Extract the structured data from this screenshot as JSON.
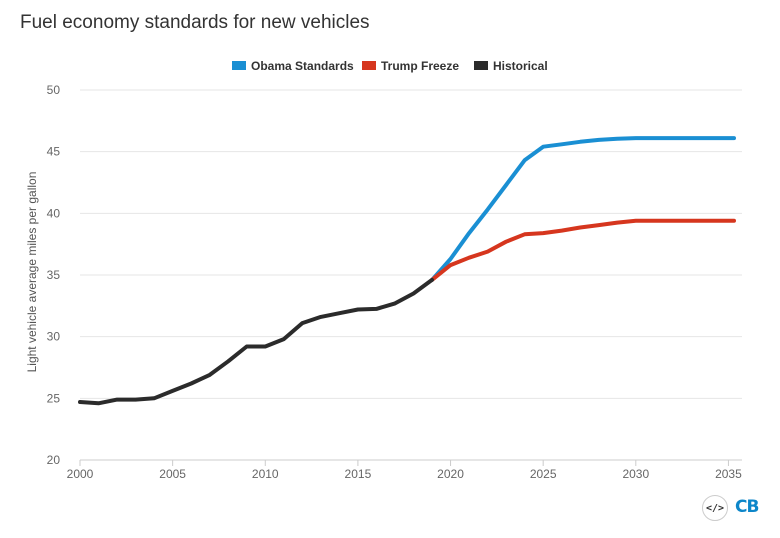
{
  "title": "Fuel economy standards for new vehicles",
  "embed_icon_text": "</>",
  "logo_text": "CB",
  "chart_data": {
    "type": "line",
    "title": "Fuel economy standards for new vehicles",
    "xlabel": "",
    "ylabel": "Light vehicle average miles per gallon",
    "xlim": [
      2000,
      2035.3
    ],
    "ylim": [
      20,
      50
    ],
    "x_ticks": [
      2000,
      2005,
      2010,
      2015,
      2020,
      2025,
      2030,
      2035
    ],
    "y_ticks": [
      20,
      25,
      30,
      35,
      40,
      45,
      50
    ],
    "grid": "horizontal",
    "legend_position": "top-center",
    "series": [
      {
        "name": "Obama Standards",
        "color": "#1a8fd3",
        "x": [
          2019,
          2020,
          2021,
          2022,
          2023,
          2024,
          2025,
          2026,
          2027,
          2028,
          2029,
          2030,
          2031,
          2032,
          2033,
          2034,
          2035.3
        ],
        "y": [
          34.6,
          36.3,
          38.4,
          40.3,
          42.3,
          44.3,
          45.4,
          45.6,
          45.8,
          45.95,
          46.05,
          46.1,
          46.1,
          46.1,
          46.1,
          46.1,
          46.1
        ]
      },
      {
        "name": "Trump Freeze",
        "color": "#d6361e",
        "x": [
          2019,
          2020,
          2021,
          2022,
          2023,
          2024,
          2025,
          2026,
          2027,
          2028,
          2029,
          2030,
          2031,
          2032,
          2033,
          2034,
          2035.3
        ],
        "y": [
          34.6,
          35.8,
          36.4,
          36.9,
          37.7,
          38.3,
          38.4,
          38.6,
          38.85,
          39.05,
          39.25,
          39.4,
          39.4,
          39.4,
          39.4,
          39.4,
          39.4
        ]
      },
      {
        "name": "Historical",
        "color": "#2b2b2b",
        "x": [
          2000,
          2001,
          2002,
          2003,
          2004,
          2005,
          2006,
          2007,
          2008,
          2009,
          2010,
          2011,
          2012,
          2013,
          2014,
          2015,
          2016,
          2017,
          2018,
          2019
        ],
        "y": [
          24.7,
          24.6,
          24.9,
          24.9,
          25.0,
          25.6,
          26.2,
          26.9,
          28.0,
          29.2,
          29.2,
          29.8,
          31.1,
          31.6,
          31.9,
          32.2,
          32.25,
          32.7,
          33.5,
          34.6
        ]
      }
    ]
  }
}
